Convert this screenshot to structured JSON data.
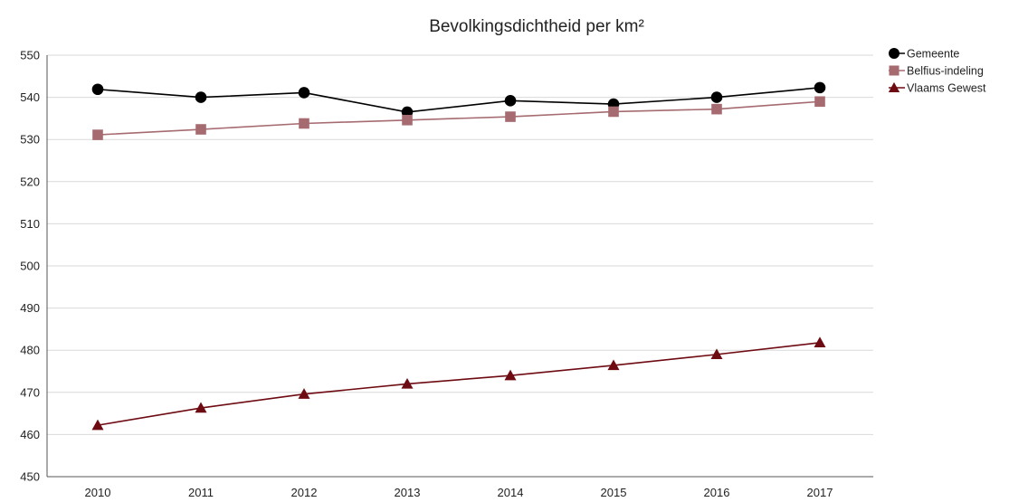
{
  "chart_data": {
    "type": "line",
    "title": "Bevolkingsdichtheid per km²",
    "xlabel": "",
    "ylabel": "",
    "x": [
      "2010",
      "2011",
      "2012",
      "2013",
      "2014",
      "2015",
      "2016",
      "2017"
    ],
    "ylim": [
      450,
      550
    ],
    "yticks": [
      450,
      460,
      470,
      480,
      490,
      500,
      510,
      520,
      530,
      540,
      550
    ],
    "grid": true,
    "legend_position": "top-right",
    "series": [
      {
        "name": "Gemeente",
        "marker": "circle",
        "color": "#000000",
        "values": [
          541.9,
          540.0,
          541.1,
          536.5,
          539.2,
          538.4,
          540.0,
          542.3
        ]
      },
      {
        "name": "Belfius-indeling",
        "marker": "square",
        "color": "#a56b70",
        "values": [
          531.1,
          532.4,
          533.8,
          534.6,
          535.4,
          536.6,
          537.2,
          539.0
        ]
      },
      {
        "name": "Vlaams Gewest",
        "marker": "triangle",
        "color": "#6e0b12",
        "values": [
          462.2,
          466.3,
          469.6,
          472.0,
          474.0,
          476.4,
          479.0,
          481.8
        ]
      }
    ]
  }
}
